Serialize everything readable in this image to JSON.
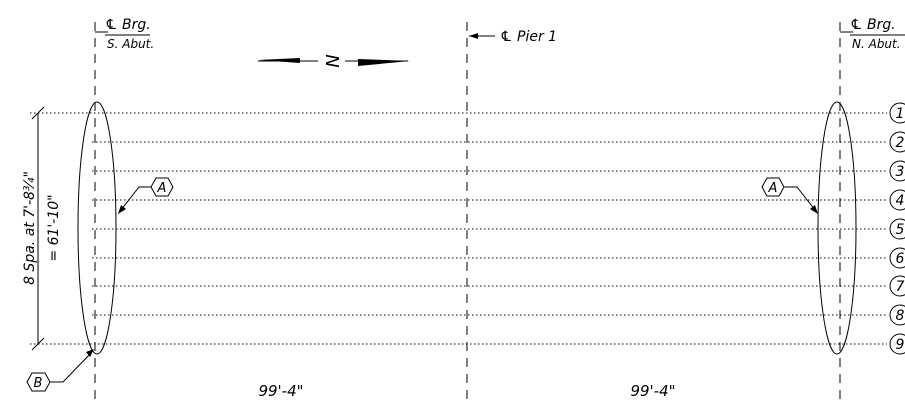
{
  "stations": {
    "south_abutment": {
      "cl_label": "℄ Brg.",
      "sub_label": "S. Abut."
    },
    "pier_1": {
      "label": "℄ Pier 1"
    },
    "north_abutment": {
      "cl_label": "℄ Brg.",
      "sub_label": "N. Abut."
    }
  },
  "north_arrow": {
    "letter": "N"
  },
  "girders": {
    "numbers": [
      "1",
      "2",
      "3",
      "4",
      "5",
      "6",
      "7",
      "8",
      "9"
    ]
  },
  "spacing": {
    "line1": "8 Spa. at 7'-8¾\"",
    "line2": "= 61'-10\""
  },
  "callouts": {
    "a_left": "A",
    "a_right": "A",
    "b": "B"
  },
  "spans": [
    {
      "length": "99'-4\""
    },
    {
      "length": "99'-4\""
    }
  ]
}
